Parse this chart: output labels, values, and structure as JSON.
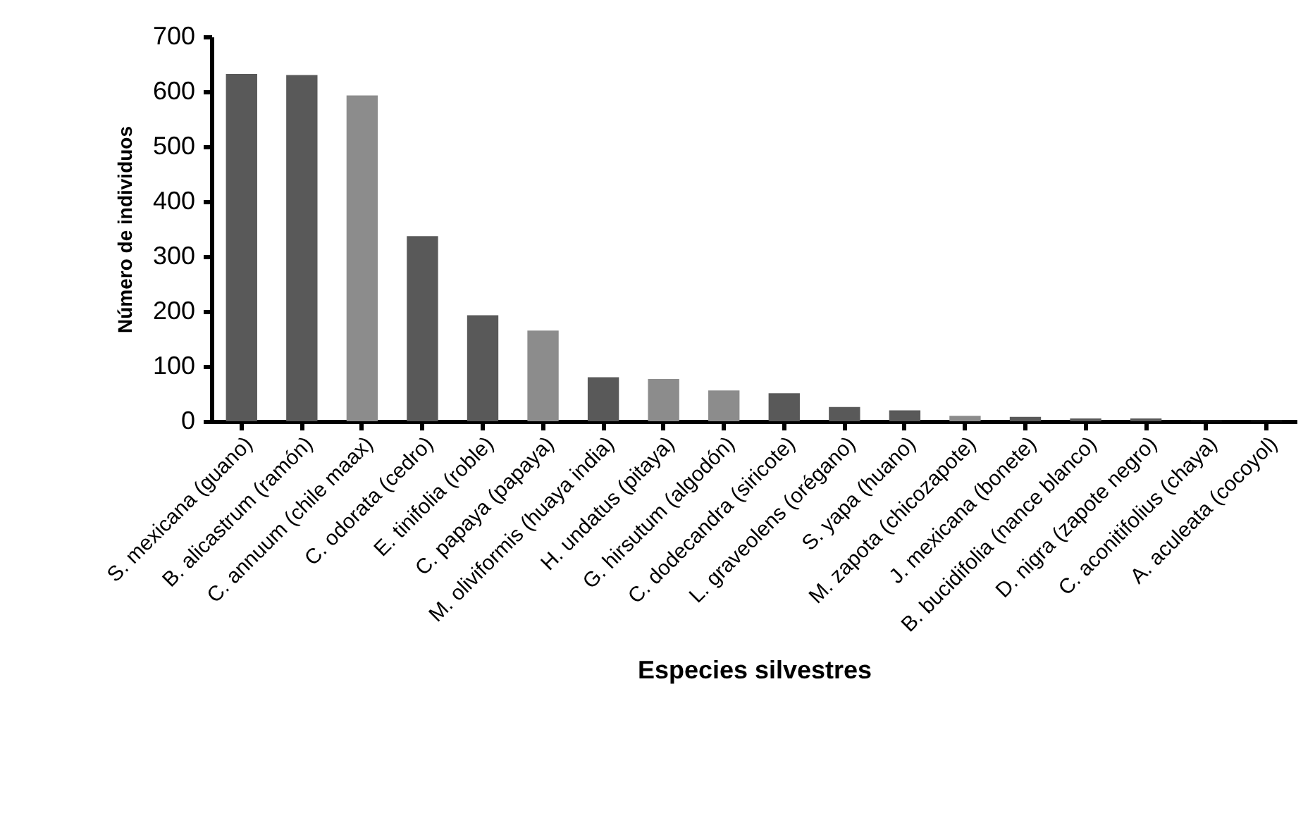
{
  "chart_data": {
    "type": "bar",
    "xlabel": "Especies silvestres",
    "ylabel": "Número de individuos",
    "categories": [
      "S. mexicana (guano)",
      "B. alicastrum (ramón)",
      "C. annuum (chile maax)",
      "C. odorata (cedro)",
      "E. tinifolia (roble)",
      "C. papaya (papaya)",
      "M. oliviformis (huaya india)",
      "H. undatus (pitaya)",
      "G. hirsutum (algodón)",
      "C. dodecandra (siricote)",
      "L. graveolens (orégano)",
      "S. yapa (huano)",
      "M. zapota (chicozapote)",
      "J. mexicana (bonete)",
      "B. bucidifolia (nance blanco)",
      "D. nigra (zapote negro)",
      "C. aconitifolius (chaya)",
      "A. aculeata (cocoyol)"
    ],
    "values": [
      632,
      630,
      593,
      337,
      193,
      165,
      80,
      77,
      56,
      51,
      26,
      20,
      10,
      8,
      5,
      5,
      1,
      1
    ],
    "colors": [
      "#595959",
      "#595959",
      "#8c8c8c",
      "#595959",
      "#595959",
      "#8c8c8c",
      "#595959",
      "#8c8c8c",
      "#8c8c8c",
      "#595959",
      "#595959",
      "#595959",
      "#8c8c8c",
      "#595959",
      "#595959",
      "#595959",
      "#595959",
      "#595959"
    ],
    "ylim": [
      0,
      700
    ],
    "yticks": [
      0,
      100,
      200,
      300,
      400,
      500,
      600,
      700
    ],
    "grid": false
  }
}
